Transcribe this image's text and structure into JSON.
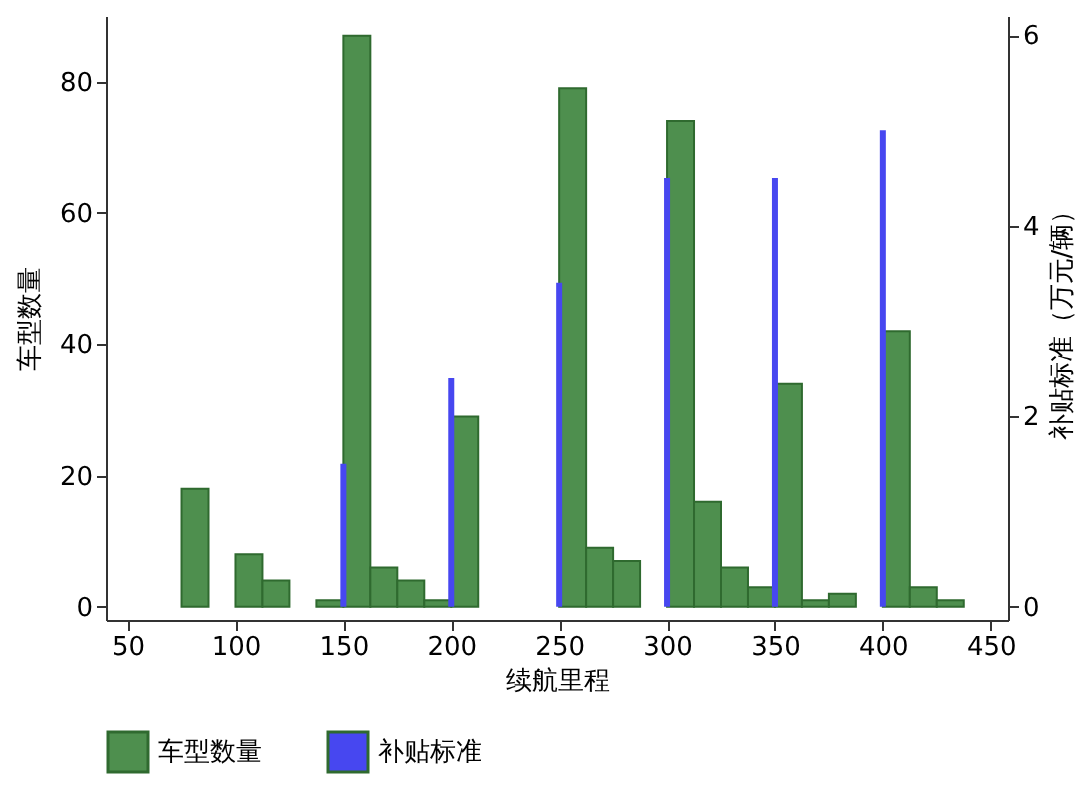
{
  "chart_data": {
    "type": "bar",
    "xlabel": "续航里程",
    "ylabel": "车型数量",
    "y2label": "补贴标准（万元/辆）",
    "xlim": [
      40,
      458
    ],
    "xticks": [
      50,
      100,
      150,
      200,
      250,
      300,
      350,
      400,
      450
    ],
    "ylim": [
      -2,
      90
    ],
    "yticks": [
      0,
      20,
      40,
      60,
      80
    ],
    "y2lim": [
      -0.14,
      6.2
    ],
    "y2ticks": [
      0,
      2,
      4,
      6
    ],
    "grid": false,
    "legend": "bottom",
    "series": [
      {
        "name": "车型数量",
        "color": "#4e8f4e",
        "x": [
          81.25,
          106.25,
          118.75,
          143.75,
          156.25,
          168.75,
          181.25,
          193.75,
          206.25,
          256.25,
          268.75,
          281.25,
          306.25,
          318.75,
          331.25,
          343.75,
          356.25,
          368.75,
          381.25,
          406.25,
          418.75,
          431.25
        ],
        "values": [
          18,
          8,
          4,
          1,
          87,
          6,
          4,
          1,
          29,
          79,
          9,
          7,
          74,
          16,
          6,
          3,
          34,
          1,
          2,
          42,
          3,
          1
        ]
      },
      {
        "name": "补贴标准",
        "color": "#4747f0",
        "axis": "y2",
        "x": [
          150,
          200,
          250,
          300,
          350,
          400
        ],
        "values": [
          1.5,
          2.4,
          3.4,
          4.5,
          4.5,
          5.0
        ]
      }
    ]
  }
}
